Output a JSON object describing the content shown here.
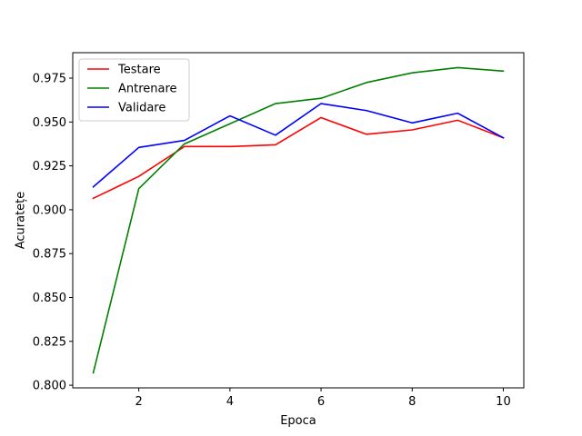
{
  "chart_data": {
    "type": "line",
    "title": "",
    "xlabel": "Epoca",
    "ylabel": "Acuratețe",
    "xlim": [
      0.55,
      10.45
    ],
    "ylim": [
      0.7985,
      0.9895
    ],
    "x_ticks": [
      2,
      4,
      6,
      8,
      10
    ],
    "y_ticks": [
      0.8,
      0.825,
      0.85,
      0.875,
      0.9,
      0.925,
      0.95,
      0.975
    ],
    "y_tick_labels": [
      "0.800",
      "0.825",
      "0.850",
      "0.875",
      "0.900",
      "0.925",
      "0.950",
      "0.975"
    ],
    "grid": false,
    "legend_position": "top-left",
    "x": [
      1,
      2,
      3,
      4,
      5,
      6,
      7,
      8,
      9,
      10
    ],
    "series": [
      {
        "name": "Testare",
        "color": "#ff0000",
        "values": [
          0.9065,
          0.919,
          0.936,
          0.936,
          0.937,
          0.9525,
          0.943,
          0.9455,
          0.951,
          0.941
        ]
      },
      {
        "name": "Antrenare",
        "color": "#008000",
        "values": [
          0.807,
          0.912,
          0.9375,
          0.949,
          0.9605,
          0.9635,
          0.9725,
          0.978,
          0.981,
          0.979
        ]
      },
      {
        "name": "Validare",
        "color": "#0000ff",
        "values": [
          0.913,
          0.9355,
          0.9395,
          0.9535,
          0.9425,
          0.9605,
          0.9565,
          0.9495,
          0.955,
          0.941
        ]
      }
    ]
  }
}
